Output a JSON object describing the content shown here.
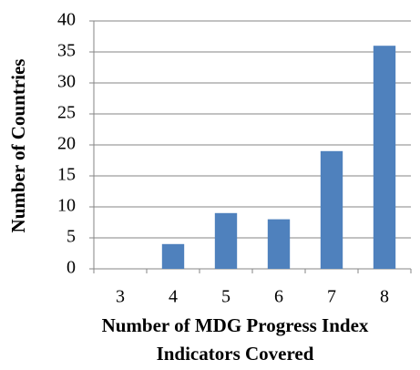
{
  "chart_data": {
    "type": "bar",
    "ylabel": "Number of Countries",
    "xlabel": [
      "Number of MDG Progress Index",
      "Indicators Covered"
    ],
    "categories": [
      "3",
      "4",
      "5",
      "6",
      "7",
      "8"
    ],
    "values": [
      0,
      4,
      9,
      8,
      19,
      36
    ],
    "color": "#4f81bd",
    "ylim": [
      0,
      40
    ],
    "yticks": [
      0,
      5,
      10,
      15,
      20,
      25,
      30,
      35,
      40
    ],
    "grid": true
  }
}
